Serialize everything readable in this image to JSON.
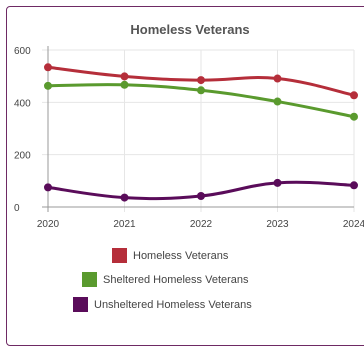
{
  "colors": {
    "homeless": "#b52e3a",
    "sheltered": "#5a9a2e",
    "unsheltered": "#5a0c5a",
    "card_border": "#6e2a64",
    "grid": "#e6e6e6",
    "axis": "#999999",
    "title": "#555555",
    "text": "#444444"
  },
  "chart_data": {
    "type": "line",
    "title": "Homeless Veterans",
    "xlabel": "",
    "ylabel": "",
    "x": [
      "2020",
      "2021",
      "2022",
      "2023",
      "2024"
    ],
    "yticks": [
      "0",
      "200",
      "400",
      "600"
    ],
    "ylim": [
      0,
      600
    ],
    "grid": true,
    "legend_position": "bottom",
    "series": [
      {
        "name": "Homeless Veterans",
        "color": "#b52e3a",
        "values": [
          534,
          499,
          485,
          491,
          427
        ]
      },
      {
        "name": "Sheltered Homeless Veterans",
        "color": "#5a9a2e",
        "values": [
          463,
          467,
          446,
          403,
          345
        ]
      },
      {
        "name": "Unsheltered Homeless Veterans",
        "color": "#5a0c5a",
        "values": [
          75,
          36,
          42,
          92,
          83
        ]
      }
    ]
  }
}
